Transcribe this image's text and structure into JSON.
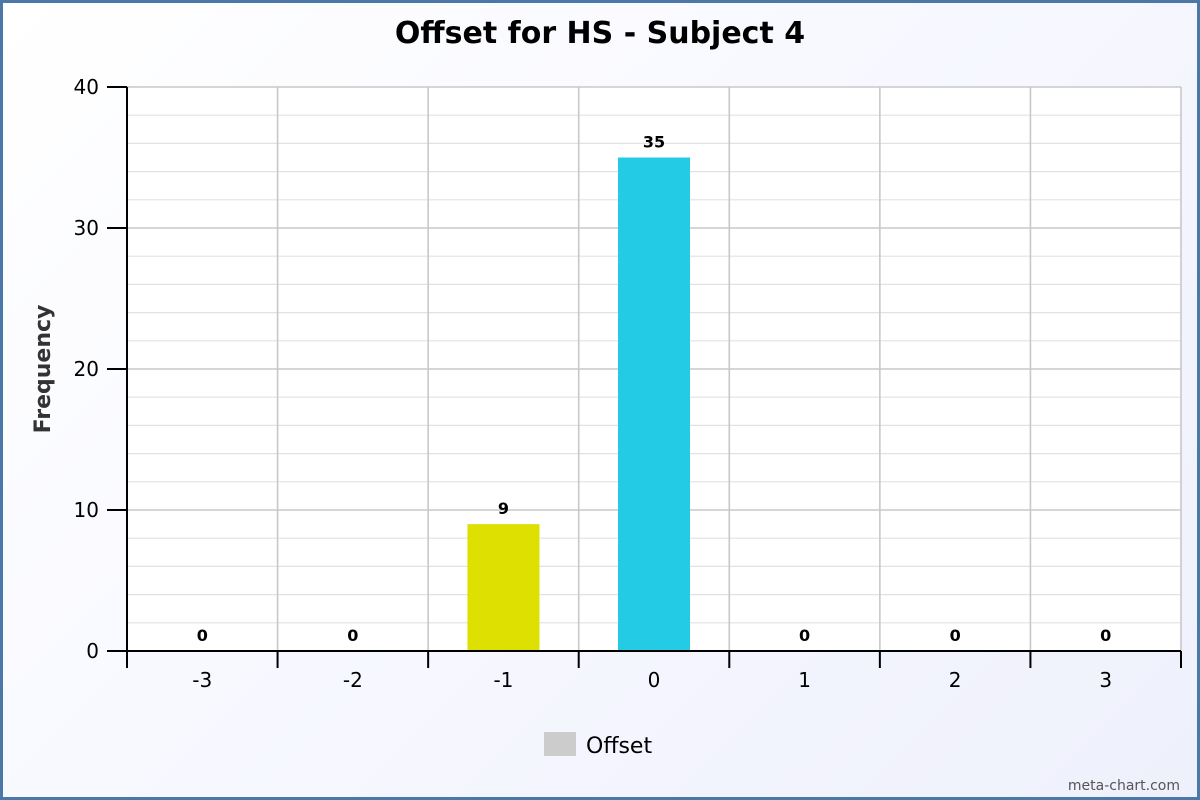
{
  "chart_data": {
    "type": "bar",
    "title": "Offset for HS - Subject 4",
    "xlabel": "",
    "ylabel": "Frequency",
    "categories": [
      "-3",
      "-2",
      "-1",
      "0",
      "1",
      "2",
      "3"
    ],
    "series": [
      {
        "name": "Offset",
        "values": [
          0,
          0,
          9,
          35,
          0,
          0,
          0
        ],
        "colors": [
          "#cccccc",
          "#cccccc",
          "#dde000",
          "#24cbe5",
          "#cccccc",
          "#cccccc",
          "#cccccc"
        ]
      }
    ],
    "ylim": [
      0,
      40
    ],
    "yticks": [
      0,
      10,
      20,
      30,
      40
    ],
    "grid": true,
    "legend": {
      "position": "bottom-center",
      "entries": [
        "Offset"
      ],
      "swatch_color": "#cccccc"
    },
    "data_labels": true
  },
  "credit": "meta-chart.com"
}
